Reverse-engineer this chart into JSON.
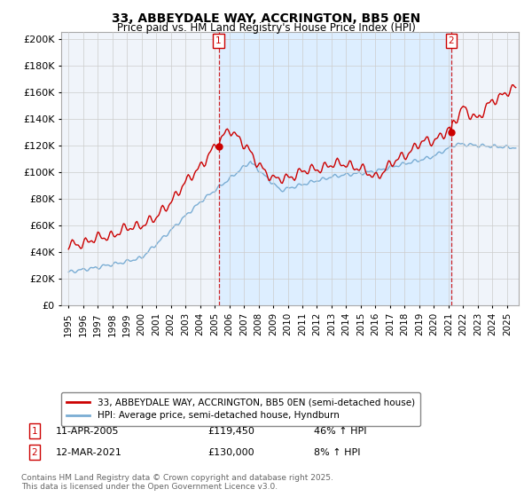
{
  "title": "33, ABBEYDALE WAY, ACCRINGTON, BB5 0EN",
  "subtitle": "Price paid vs. HM Land Registry's House Price Index (HPI)",
  "ytick_values": [
    0,
    20000,
    40000,
    60000,
    80000,
    100000,
    120000,
    140000,
    160000,
    180000,
    200000
  ],
  "ylim": [
    0,
    205000
  ],
  "xlim_start": 1994.5,
  "xlim_end": 2025.8,
  "transaction1_x": 2005.27,
  "transaction1_y": 119450,
  "transaction2_x": 2021.19,
  "transaction2_y": 130000,
  "transaction1_label": "11-APR-2005",
  "transaction1_price": "£119,450",
  "transaction1_hpi": "46% ↑ HPI",
  "transaction2_label": "12-MAR-2021",
  "transaction2_price": "£130,000",
  "transaction2_hpi": "8% ↑ HPI",
  "legend_line1": "33, ABBEYDALE WAY, ACCRINGTON, BB5 0EN (semi-detached house)",
  "legend_line2": "HPI: Average price, semi-detached house, Hyndburn",
  "footnote": "Contains HM Land Registry data © Crown copyright and database right 2025.\nThis data is licensed under the Open Government Licence v3.0.",
  "line_color_price": "#cc0000",
  "line_color_hpi": "#7aadd4",
  "vline_color": "#cc0000",
  "shade_color": "#ddeeff",
  "background_color": "#ffffff",
  "grid_color": "#cccccc",
  "plot_bg": "#f0f4fa"
}
